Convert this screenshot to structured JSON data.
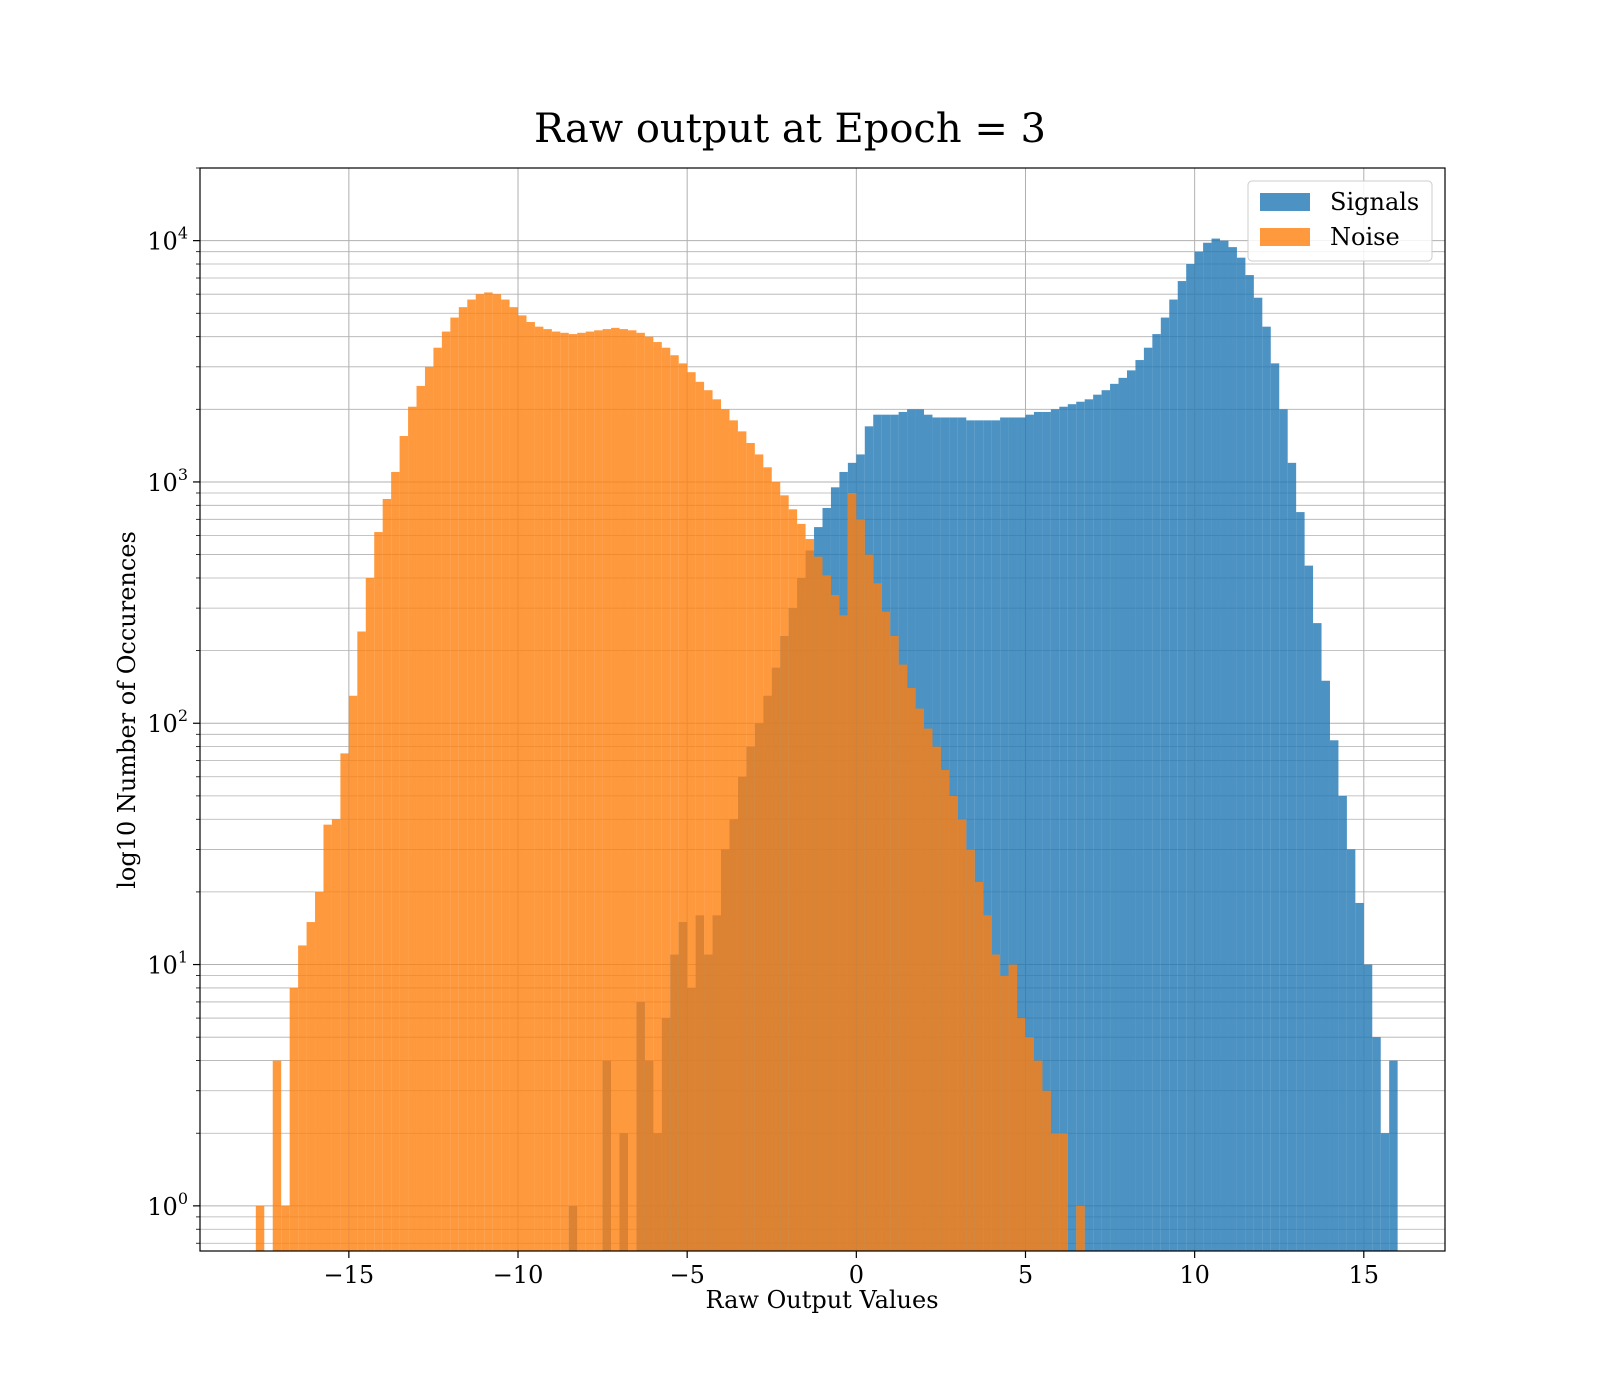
{
  "chart_data": {
    "type": "histogram",
    "title": "Raw output at Epoch = 3",
    "xlabel": "Raw Output Values",
    "ylabel": "log10 Number of Occurences",
    "xlim": [
      -19.4,
      17.4
    ],
    "ylim": [
      0.65,
      20000
    ],
    "yscale": "log",
    "grid": true,
    "legend_position": "top-right",
    "x_ticks": [
      {
        "value": -15,
        "label": "−15"
      },
      {
        "value": -10,
        "label": "−10"
      },
      {
        "value": -5,
        "label": "−5"
      },
      {
        "value": 0,
        "label": "0"
      },
      {
        "value": 5,
        "label": "5"
      },
      {
        "value": 10,
        "label": "10"
      },
      {
        "value": 15,
        "label": "15"
      }
    ],
    "y_ticks": [
      {
        "value": 1,
        "base": "10",
        "exp": "0"
      },
      {
        "value": 10,
        "base": "10",
        "exp": "1"
      },
      {
        "value": 100,
        "base": "10",
        "exp": "2"
      },
      {
        "value": 1000,
        "base": "10",
        "exp": "3"
      },
      {
        "value": 10000,
        "base": "10",
        "exp": "4"
      }
    ],
    "bin_width": 0.25,
    "series": [
      {
        "name": "Signals",
        "color": "#1f77b4",
        "opacity": 0.8,
        "bins": [
          [
            -8.5,
            1
          ],
          [
            -7.5,
            4
          ],
          [
            -7.0,
            2
          ],
          [
            -6.5,
            7
          ],
          [
            -6.25,
            4
          ],
          [
            -6.0,
            2
          ],
          [
            -5.75,
            6
          ],
          [
            -5.5,
            11
          ],
          [
            -5.25,
            15
          ],
          [
            -5.0,
            8
          ],
          [
            -4.75,
            16
          ],
          [
            -4.5,
            11
          ],
          [
            -4.25,
            16
          ],
          [
            -4.0,
            30
          ],
          [
            -3.75,
            40
          ],
          [
            -3.5,
            60
          ],
          [
            -3.25,
            80
          ],
          [
            -3.0,
            100
          ],
          [
            -2.75,
            130
          ],
          [
            -2.5,
            170
          ],
          [
            -2.25,
            230
          ],
          [
            -2.0,
            300
          ],
          [
            -1.75,
            400
          ],
          [
            -1.5,
            520
          ],
          [
            -1.25,
            650
          ],
          [
            -1.0,
            780
          ],
          [
            -0.75,
            950
          ],
          [
            -0.5,
            1100
          ],
          [
            -0.25,
            1200
          ],
          [
            0.0,
            1300
          ],
          [
            0.25,
            1700
          ],
          [
            0.5,
            1900
          ],
          [
            0.75,
            1900
          ],
          [
            1.0,
            1900
          ],
          [
            1.25,
            1950
          ],
          [
            1.5,
            2000
          ],
          [
            1.75,
            2000
          ],
          [
            2.0,
            1900
          ],
          [
            2.25,
            1850
          ],
          [
            2.5,
            1850
          ],
          [
            2.75,
            1850
          ],
          [
            3.0,
            1850
          ],
          [
            3.25,
            1800
          ],
          [
            3.5,
            1800
          ],
          [
            3.75,
            1800
          ],
          [
            4.0,
            1800
          ],
          [
            4.25,
            1850
          ],
          [
            4.5,
            1850
          ],
          [
            4.75,
            1850
          ],
          [
            5.0,
            1900
          ],
          [
            5.25,
            1950
          ],
          [
            5.5,
            1950
          ],
          [
            5.75,
            2000
          ],
          [
            6.0,
            2050
          ],
          [
            6.25,
            2100
          ],
          [
            6.5,
            2150
          ],
          [
            6.75,
            2200
          ],
          [
            7.0,
            2300
          ],
          [
            7.25,
            2400
          ],
          [
            7.5,
            2550
          ],
          [
            7.75,
            2700
          ],
          [
            8.0,
            2900
          ],
          [
            8.25,
            3200
          ],
          [
            8.5,
            3600
          ],
          [
            8.75,
            4100
          ],
          [
            9.0,
            4800
          ],
          [
            9.25,
            5700
          ],
          [
            9.5,
            6800
          ],
          [
            9.75,
            8000
          ],
          [
            10.0,
            9000
          ],
          [
            10.25,
            9800
          ],
          [
            10.5,
            10200
          ],
          [
            10.75,
            10000
          ],
          [
            11.0,
            9400
          ],
          [
            11.25,
            8500
          ],
          [
            11.5,
            7200
          ],
          [
            11.75,
            5800
          ],
          [
            12.0,
            4400
          ],
          [
            12.25,
            3100
          ],
          [
            12.5,
            2000
          ],
          [
            12.75,
            1200
          ],
          [
            13.0,
            750
          ],
          [
            13.25,
            450
          ],
          [
            13.5,
            260
          ],
          [
            13.75,
            150
          ],
          [
            14.0,
            85
          ],
          [
            14.25,
            50
          ],
          [
            14.5,
            30
          ],
          [
            14.75,
            18
          ],
          [
            15.0,
            10
          ],
          [
            15.25,
            5
          ],
          [
            15.5,
            2
          ],
          [
            15.75,
            4
          ]
        ]
      },
      {
        "name": "Noise",
        "color": "#ff7f0e",
        "opacity": 0.8,
        "bins": [
          [
            -17.75,
            1
          ],
          [
            -17.25,
            4
          ],
          [
            -17.0,
            1
          ],
          [
            -16.75,
            8
          ],
          [
            -16.5,
            12
          ],
          [
            -16.25,
            15
          ],
          [
            -16.0,
            20
          ],
          [
            -15.75,
            38
          ],
          [
            -15.5,
            40
          ],
          [
            -15.25,
            75
          ],
          [
            -15.0,
            130
          ],
          [
            -14.75,
            240
          ],
          [
            -14.5,
            400
          ],
          [
            -14.25,
            620
          ],
          [
            -14.0,
            850
          ],
          [
            -13.75,
            1100
          ],
          [
            -13.5,
            1550
          ],
          [
            -13.25,
            2050
          ],
          [
            -13.0,
            2500
          ],
          [
            -12.75,
            3000
          ],
          [
            -12.5,
            3600
          ],
          [
            -12.25,
            4200
          ],
          [
            -12.0,
            4800
          ],
          [
            -11.75,
            5300
          ],
          [
            -11.5,
            5700
          ],
          [
            -11.25,
            6000
          ],
          [
            -11.0,
            6100
          ],
          [
            -10.75,
            6000
          ],
          [
            -10.5,
            5700
          ],
          [
            -10.25,
            5300
          ],
          [
            -10.0,
            4900
          ],
          [
            -9.75,
            4600
          ],
          [
            -9.5,
            4400
          ],
          [
            -9.25,
            4300
          ],
          [
            -9.0,
            4200
          ],
          [
            -8.75,
            4150
          ],
          [
            -8.5,
            4100
          ],
          [
            -8.25,
            4150
          ],
          [
            -8.0,
            4200
          ],
          [
            -7.75,
            4250
          ],
          [
            -7.5,
            4300
          ],
          [
            -7.25,
            4350
          ],
          [
            -7.0,
            4300
          ],
          [
            -6.75,
            4250
          ],
          [
            -6.5,
            4150
          ],
          [
            -6.25,
            4000
          ],
          [
            -6.0,
            3800
          ],
          [
            -5.75,
            3600
          ],
          [
            -5.5,
            3350
          ],
          [
            -5.25,
            3100
          ],
          [
            -5.0,
            2850
          ],
          [
            -4.75,
            2600
          ],
          [
            -4.5,
            2400
          ],
          [
            -4.25,
            2200
          ],
          [
            -4.0,
            2000
          ],
          [
            -3.75,
            1800
          ],
          [
            -3.5,
            1620
          ],
          [
            -3.25,
            1450
          ],
          [
            -3.0,
            1300
          ],
          [
            -2.75,
            1150
          ],
          [
            -2.5,
            1000
          ],
          [
            -2.25,
            880
          ],
          [
            -2.0,
            770
          ],
          [
            -1.75,
            670
          ],
          [
            -1.5,
            580
          ],
          [
            -1.25,
            490
          ],
          [
            -1.0,
            410
          ],
          [
            -0.75,
            340
          ],
          [
            -0.5,
            280
          ],
          [
            -0.25,
            900
          ],
          [
            0.0,
            700
          ],
          [
            0.25,
            500
          ],
          [
            0.5,
            380
          ],
          [
            0.75,
            290
          ],
          [
            1.0,
            230
          ],
          [
            1.25,
            175
          ],
          [
            1.5,
            140
          ],
          [
            1.75,
            115
          ],
          [
            2.0,
            95
          ],
          [
            2.25,
            80
          ],
          [
            2.5,
            64
          ],
          [
            2.75,
            50
          ],
          [
            3.0,
            40
          ],
          [
            3.25,
            30
          ],
          [
            3.5,
            22
          ],
          [
            3.75,
            16
          ],
          [
            4.0,
            11
          ],
          [
            4.25,
            9
          ],
          [
            4.5,
            10
          ],
          [
            4.75,
            6
          ],
          [
            5.0,
            5
          ],
          [
            5.25,
            4
          ],
          [
            5.5,
            3
          ],
          [
            5.75,
            2
          ],
          [
            6.0,
            2
          ],
          [
            6.5,
            1
          ]
        ]
      }
    ]
  }
}
